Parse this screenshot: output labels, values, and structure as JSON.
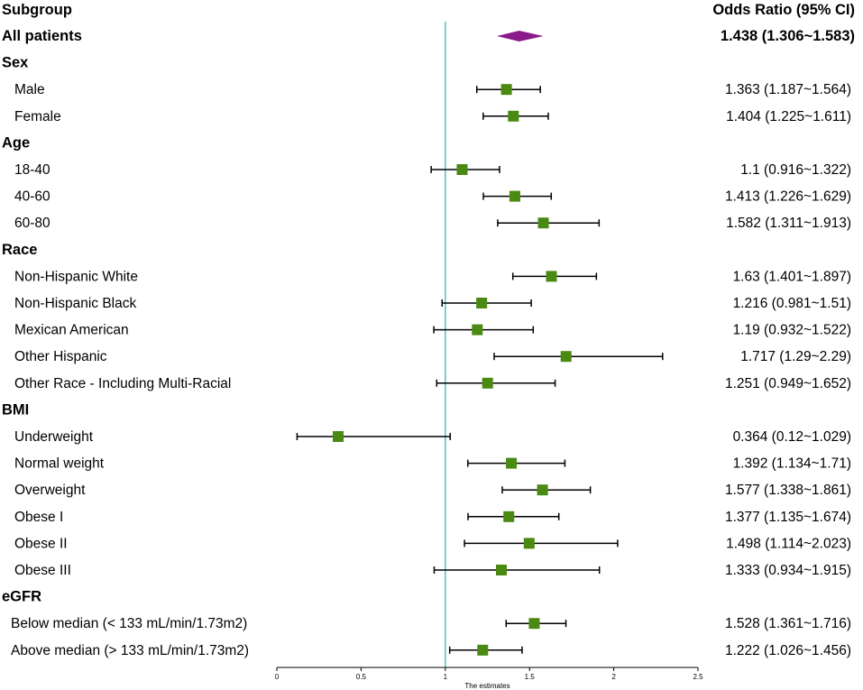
{
  "chart_data": {
    "type": "forest",
    "headers": {
      "subgroup": "Subgroup",
      "estimate": "Odds Ratio (95% CI)"
    },
    "xlabel": "The estimates",
    "xlim": [
      0,
      2.5
    ],
    "xticks": [
      "0",
      "0.5",
      "1",
      "1.5",
      "2",
      "2.5"
    ],
    "reference_line": 1,
    "colors": {
      "marker": "#4a8a12",
      "overall": "#8a1a8a",
      "reference": "#5fc4c4",
      "line": "#000000"
    },
    "rows": [
      {
        "label": "All patients",
        "kind": "overall",
        "or": 1.438,
        "lo": 1.306,
        "hi": 1.583,
        "text": "1.438 (1.306~1.583)"
      },
      {
        "label": "Sex",
        "kind": "header"
      },
      {
        "label": "Male",
        "kind": "item",
        "or": 1.363,
        "lo": 1.187,
        "hi": 1.564,
        "text": "1.363 (1.187~1.564)"
      },
      {
        "label": "Female",
        "kind": "item",
        "or": 1.404,
        "lo": 1.225,
        "hi": 1.611,
        "text": "1.404 (1.225~1.611)"
      },
      {
        "label": "Age",
        "kind": "header"
      },
      {
        "label": "18-40",
        "kind": "item",
        "or": 1.1,
        "lo": 0.916,
        "hi": 1.322,
        "text": "1.1 (0.916~1.322)"
      },
      {
        "label": "40-60",
        "kind": "item",
        "or": 1.413,
        "lo": 1.226,
        "hi": 1.629,
        "text": "1.413 (1.226~1.629)"
      },
      {
        "label": "60-80",
        "kind": "item",
        "or": 1.582,
        "lo": 1.311,
        "hi": 1.913,
        "text": "1.582 (1.311~1.913)"
      },
      {
        "label": "Race",
        "kind": "header"
      },
      {
        "label": "Non-Hispanic White",
        "kind": "item",
        "or": 1.63,
        "lo": 1.401,
        "hi": 1.897,
        "text": "1.63 (1.401~1.897)"
      },
      {
        "label": "Non-Hispanic Black",
        "kind": "item",
        "or": 1.216,
        "lo": 0.981,
        "hi": 1.51,
        "text": "1.216 (0.981~1.51)"
      },
      {
        "label": "Mexican American",
        "kind": "item",
        "or": 1.19,
        "lo": 0.932,
        "hi": 1.522,
        "text": "1.19 (0.932~1.522)"
      },
      {
        "label": "Other Hispanic",
        "kind": "item",
        "or": 1.717,
        "lo": 1.29,
        "hi": 2.29,
        "text": "1.717 (1.29~2.29)"
      },
      {
        "label": "Other Race - Including Multi-Racial",
        "kind": "item",
        "or": 1.251,
        "lo": 0.949,
        "hi": 1.652,
        "text": "1.251 (0.949~1.652)"
      },
      {
        "label": "BMI",
        "kind": "header"
      },
      {
        "label": "Underweight",
        "kind": "item",
        "or": 0.364,
        "lo": 0.12,
        "hi": 1.029,
        "text": "0.364 (0.12~1.029)"
      },
      {
        "label": "Normal weight",
        "kind": "item",
        "or": 1.392,
        "lo": 1.134,
        "hi": 1.71,
        "text": "1.392 (1.134~1.71)"
      },
      {
        "label": "Overweight",
        "kind": "item",
        "or": 1.577,
        "lo": 1.338,
        "hi": 1.861,
        "text": "1.577 (1.338~1.861)"
      },
      {
        "label": "Obese I",
        "kind": "item",
        "or": 1.377,
        "lo": 1.135,
        "hi": 1.674,
        "text": "1.377 (1.135~1.674)"
      },
      {
        "label": "Obese II",
        "kind": "item",
        "or": 1.498,
        "lo": 1.114,
        "hi": 2.023,
        "text": "1.498 (1.114~2.023)"
      },
      {
        "label": "Obese III",
        "kind": "item",
        "or": 1.333,
        "lo": 0.934,
        "hi": 1.915,
        "text": "1.333 (0.934~1.915)"
      },
      {
        "label": "eGFR",
        "kind": "header"
      },
      {
        "label": "Below median  (< 133 mL/min/1.73m2)",
        "kind": "item2",
        "or": 1.528,
        "lo": 1.361,
        "hi": 1.716,
        "text": "1.528 (1.361~1.716)"
      },
      {
        "label": "Above median  (> 133 mL/min/1.73m2)",
        "kind": "item2",
        "or": 1.222,
        "lo": 1.026,
        "hi": 1.456,
        "text": "1.222 (1.026~1.456)"
      }
    ]
  }
}
